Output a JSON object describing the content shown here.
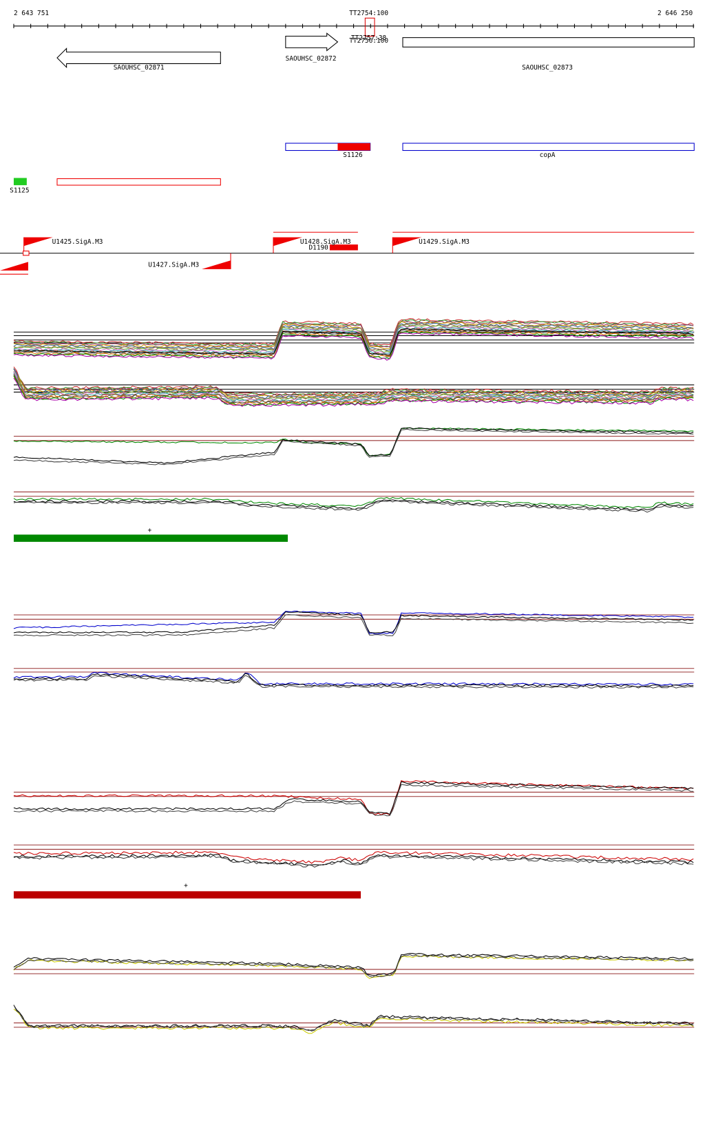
{
  "ruler": {
    "start": "2 643 751",
    "center": "TT2754:100",
    "end": "2 646 250",
    "overlap_labels": [
      "TT2757:38",
      "TT2756:100"
    ]
  },
  "genes": [
    {
      "label": "SAOUHSC_02871"
    },
    {
      "label": "SAOUHSC_02872"
    },
    {
      "label": "SAOUHSC_02873"
    }
  ],
  "features": [
    {
      "label": "S1126"
    },
    {
      "label": "copA"
    },
    {
      "label": "S1125"
    }
  ],
  "promoters": [
    {
      "label": "U1425.SigA.M3"
    },
    {
      "label": "U1428.SigA.M3"
    },
    {
      "label": "U1429.SigA.M3"
    },
    {
      "label": "U1427.SigA.M3"
    },
    {
      "label": "D1190"
    }
  ],
  "markers": [
    {
      "label": "+"
    },
    {
      "label": "+"
    }
  ]
}
